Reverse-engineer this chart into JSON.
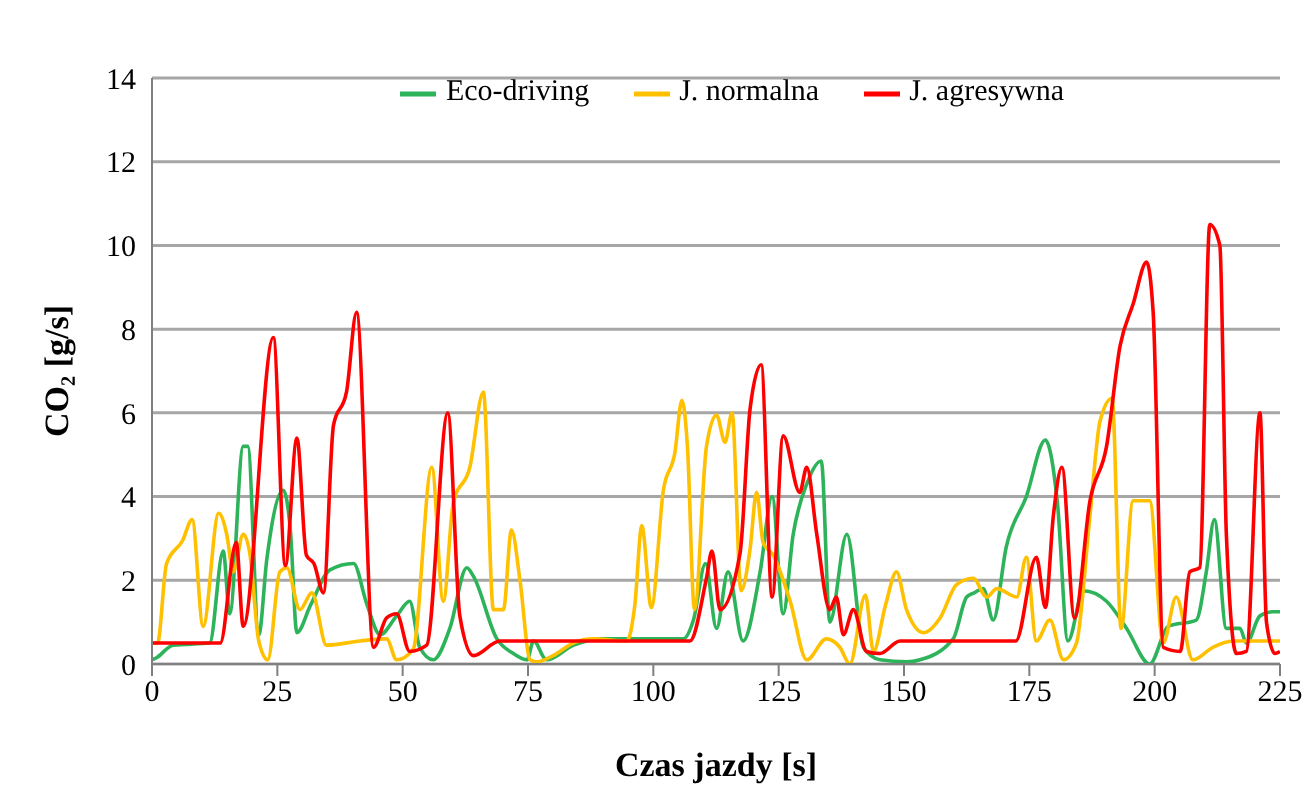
{
  "chart_data": {
    "type": "line",
    "xlabel": "Czas jazdy [s]",
    "ylabel": "CO₂ [g/s]",
    "xlim": [
      0,
      225
    ],
    "xticks": [
      0,
      25,
      50,
      75,
      100,
      125,
      150,
      175,
      200,
      225
    ],
    "ylim": [
      0,
      14
    ],
    "yticks": [
      0,
      2,
      4,
      6,
      8,
      10,
      12,
      14
    ],
    "grid": "y",
    "legend": "top",
    "marker": "none",
    "line_style": "solid",
    "series": [
      {
        "name": "Eco-driving",
        "color": "#2db35a",
        "x": [
          0,
          0.9,
          4.2,
          11.5,
          14.2,
          15.5,
          18.2,
          19.1,
          21.3,
          22.9,
          26.2,
          27.6,
          28.9,
          31.6,
          35.5,
          40.2,
          42.8,
          45.5,
          48.8,
          51.4,
          53.4,
          56.1,
          59.4,
          62.8,
          64.1,
          68.8,
          72.1,
          74.8,
          76.1,
          78.7,
          84.1,
          89.4,
          106,
          108,
          110.4,
          112.6,
          114.9,
          117.9,
          121.3,
          123.7,
          125.9,
          127.9,
          130.6,
          133.5,
          135.2,
          138.6,
          141.9,
          145.2,
          150.5,
          153.2,
          159.8,
          162.5,
          164,
          165.8,
          167.8,
          170.4,
          174.4,
          178.2,
          180.6,
          182.7,
          185.8,
          190.4,
          194.4,
          199,
          202.7,
          208.3,
          210.3,
          211.9,
          214.3,
          217,
          218.3,
          221,
          223.6,
          225
        ],
        "values": [
          0.1,
          0.15,
          0.45,
          0.5,
          2.7,
          1.2,
          5.2,
          5.2,
          0.7,
          2.5,
          4.15,
          3.2,
          0.75,
          1.4,
          2.25,
          2.4,
          1.45,
          0.7,
          1.15,
          1.5,
          0.4,
          0.1,
          0.85,
          2.3,
          2.1,
          0.6,
          0.25,
          0.1,
          0.55,
          0.1,
          0.45,
          0.6,
          0.6,
          1.05,
          2.4,
          0.85,
          2.2,
          0.55,
          2.2,
          4,
          1.2,
          3.1,
          4.3,
          4.85,
          1,
          3.1,
          0.4,
          0.1,
          0.05,
          0.1,
          0.6,
          1.6,
          1.7,
          1.8,
          1.05,
          2.8,
          4,
          5.35,
          3.85,
          0.55,
          1.75,
          1.5,
          0.85,
          0,
          0.9,
          1.05,
          2.2,
          3.45,
          0.85,
          0.85,
          0.5,
          1.15,
          1.25,
          1.25
        ]
      },
      {
        "name": "J. normalna",
        "color": "#ffc000",
        "x": [
          0,
          1.1,
          2.9,
          6.1,
          8,
          10.2,
          13.3,
          14.9,
          16.2,
          18.2,
          19.5,
          21.3,
          23.1,
          25.5,
          26.9,
          29.5,
          31.9,
          34.8,
          41.5,
          46.8,
          48.8,
          52.1,
          55.8,
          58.1,
          60.1,
          63.4,
          66.1,
          68.1,
          70.1,
          71.7,
          73.4,
          75.4,
          76.7,
          80,
          84,
          88,
          94.7,
          96.3,
          97.7,
          99.6,
          102,
          104.3,
          105.7,
          106.8,
          108.2,
          110.6,
          112.6,
          114.3,
          115.7,
          117.5,
          119.3,
          120.6,
          121.9,
          123.9,
          127.3,
          130.6,
          134.5,
          137.2,
          139.2,
          142.3,
          143.9,
          146.3,
          148.5,
          150.5,
          153.9,
          157.2,
          160.5,
          163.8,
          166.5,
          168.5,
          172.5,
          174.4,
          176.4,
          179.1,
          181.8,
          184.4,
          187.1,
          189.1,
          191.5,
          193.3,
          195.7,
          199,
          201.7,
          204.3,
          207.6,
          211.6,
          215.6,
          221,
          225
        ],
        "values": [
          0.5,
          0.5,
          2.4,
          2.95,
          3.45,
          0.9,
          3.6,
          3.1,
          2.2,
          3.1,
          2.65,
          0.55,
          0.1,
          2.2,
          2.3,
          1.3,
          1.7,
          0.45,
          0.55,
          0.6,
          0.1,
          0.35,
          4.7,
          1.5,
          3.85,
          4.7,
          6.5,
          1.3,
          1.3,
          3.2,
          2,
          0.1,
          0.05,
          0.2,
          0.5,
          0.6,
          0.55,
          1.4,
          3.3,
          1.35,
          4.15,
          5.05,
          6.3,
          5.2,
          1.3,
          5.2,
          5.95,
          5.3,
          6,
          1.75,
          2.75,
          4.1,
          2.9,
          2.6,
          1.5,
          0.1,
          0.6,
          0.4,
          0,
          1.65,
          0.3,
          1.4,
          2.2,
          1.3,
          0.75,
          1.1,
          1.9,
          2.05,
          1.6,
          1.8,
          1.6,
          2.55,
          0.55,
          1.05,
          0.1,
          0.5,
          3.55,
          5.8,
          6.35,
          0.85,
          3.9,
          3.9,
          0.5,
          1.6,
          0.1,
          0.4,
          0.55,
          0.55,
          0.55
        ]
      },
      {
        "name": "J. agresywna",
        "color": "#ff0000",
        "x": [
          0,
          13.6,
          16.8,
          18.2,
          24.2,
          26.6,
          28.9,
          30.8,
          32.3,
          34.2,
          36.2,
          38.8,
          40.8,
          44.2,
          46.8,
          48.8,
          51.4,
          54.8,
          59,
          61.4,
          64.1,
          69.4,
          107.3,
          110.6,
          111.7,
          113.3,
          117.3,
          119.3,
          121.5,
          123.7,
          125.9,
          129.2,
          130.6,
          132.6,
          135.2,
          136.5,
          137.9,
          139.9,
          142.5,
          145.2,
          149.2,
          172.3,
          176.4,
          178.2,
          179.8,
          181.5,
          184,
          187.1,
          190.4,
          193.1,
          195.7,
          198.4,
          199.7,
          201.7,
          205.1,
          207,
          209,
          211,
          213,
          214.3,
          216.3,
          218.3,
          221,
          222.3,
          224,
          225
        ],
        "values": [
          0.5,
          0.5,
          2.9,
          0.9,
          7.8,
          2.35,
          5.4,
          2.6,
          2.4,
          1.7,
          5.7,
          6.5,
          8.4,
          0.4,
          1.1,
          1.2,
          0.3,
          0.45,
          6,
          1.15,
          0.2,
          0.55,
          0.55,
          2.05,
          2.7,
          1.3,
          2.65,
          6.1,
          7.15,
          1.6,
          5.45,
          4.1,
          4.7,
          3.1,
          1.3,
          1.6,
          0.7,
          1.3,
          0.3,
          0.25,
          0.55,
          0.55,
          2.55,
          1.35,
          3.55,
          4.7,
          1.1,
          3.9,
          5.2,
          7.6,
          8.6,
          9.6,
          8.4,
          0.4,
          0.3,
          2.2,
          2.3,
          10.5,
          10,
          3.1,
          0.25,
          0.3,
          6,
          1,
          0.25,
          0.3
        ]
      }
    ]
  }
}
